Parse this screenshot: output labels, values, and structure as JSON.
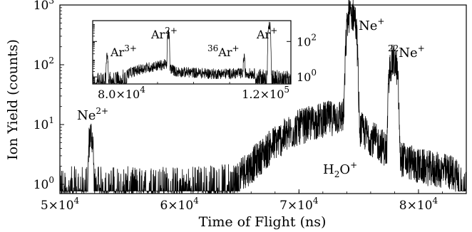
{
  "chart_data": {
    "type": "line",
    "title": "",
    "xlabel": "Time of Flight (ns)",
    "ylabel": "Ion Yield (counts)",
    "xlim": [
      50000,
      84000
    ],
    "ylim": [
      0.7,
      1000
    ],
    "yscale": "log",
    "grid": false,
    "xticks": [
      {
        "value": 50000,
        "mant": "5",
        "exp": "4"
      },
      {
        "value": 60000,
        "mant": "6",
        "exp": "4"
      },
      {
        "value": 70000,
        "mant": "7",
        "exp": "4"
      },
      {
        "value": 80000,
        "mant": "8",
        "exp": "4"
      }
    ],
    "yticks": [
      {
        "value": 1,
        "exp": "0"
      },
      {
        "value": 10,
        "exp": "1"
      },
      {
        "value": 100,
        "exp": "2"
      },
      {
        "value": 1000,
        "exp": "3"
      }
    ],
    "peaks": [
      {
        "label": "Ne",
        "charge": "2+",
        "x": 52600,
        "y": 6.5,
        "width": 220
      },
      {
        "label": "Ne",
        "charge": "+",
        "x": 74400,
        "y": 700,
        "width": 450
      },
      {
        "label": "22Ne",
        "charge": "+",
        "x": 77900,
        "y": 110,
        "width": 400
      },
      {
        "label": "H2O",
        "charge": "+",
        "x": 71700,
        "y": 1.3
      }
    ],
    "background": [
      {
        "x": 50000,
        "y": 1.0
      },
      {
        "x": 60000,
        "y": 1.0
      },
      {
        "x": 64000,
        "y": 1.1
      },
      {
        "x": 66000,
        "y": 2.0
      },
      {
        "x": 68000,
        "y": 5.0
      },
      {
        "x": 70000,
        "y": 9.0
      },
      {
        "x": 72000,
        "y": 12.0
      },
      {
        "x": 73800,
        "y": 14.0
      },
      {
        "x": 76000,
        "y": 6.0
      },
      {
        "x": 78000,
        "y": 3.0
      },
      {
        "x": 80000,
        "y": 2.0
      },
      {
        "x": 84000,
        "y": 1.4
      }
    ],
    "inset": {
      "type": "line",
      "xlim": [
        72000,
        127000
      ],
      "ylim": [
        0.4,
        1500
      ],
      "yscale": "log",
      "xticks": [
        {
          "value": 80000,
          "mant": "8.0",
          "exp": "4"
        },
        {
          "value": 120000,
          "mant": "1.2",
          "exp": "5"
        }
      ],
      "yticks": [
        {
          "value": 1,
          "exp": "0"
        },
        {
          "value": 100,
          "exp": "2"
        }
      ],
      "peaks": [
        {
          "label": "Ar",
          "charge": "3+",
          "x": 76000,
          "y": 15,
          "width": 250
        },
        {
          "label": "Ar",
          "charge": "2+",
          "x": 93000,
          "y": 250,
          "width": 300
        },
        {
          "label": "36Ar",
          "charge": "+",
          "x": 114000,
          "y": 10,
          "width": 250
        },
        {
          "label": "Ar",
          "charge": "+",
          "x": 121000,
          "y": 900,
          "width": 350
        }
      ],
      "background": [
        {
          "x": 72000,
          "y": 0.8
        },
        {
          "x": 80000,
          "y": 1.2
        },
        {
          "x": 86000,
          "y": 3.0
        },
        {
          "x": 92000,
          "y": 5.0
        },
        {
          "x": 95000,
          "y": 2.0
        },
        {
          "x": 105000,
          "y": 1.5
        },
        {
          "x": 115000,
          "y": 1.6
        },
        {
          "x": 127000,
          "y": 1.1
        }
      ]
    }
  },
  "annotations": {
    "ne2": {
      "base": "Ne",
      "sup": "2+"
    },
    "ne1": {
      "base": "Ne",
      "sup": "+"
    },
    "ne22": {
      "pre": "22",
      "base": "Ne",
      "sup": "+"
    },
    "h2o": {
      "base": "H",
      "sub": "2",
      "base2": "O",
      "sup": "+"
    },
    "ar3": {
      "base": "Ar",
      "sup": "3+"
    },
    "ar2": {
      "base": "Ar",
      "sup": "2+"
    },
    "ar36": {
      "pre": "36",
      "base": "Ar",
      "sup": "+"
    },
    "ar1": {
      "base": "Ar",
      "sup": "+"
    }
  }
}
